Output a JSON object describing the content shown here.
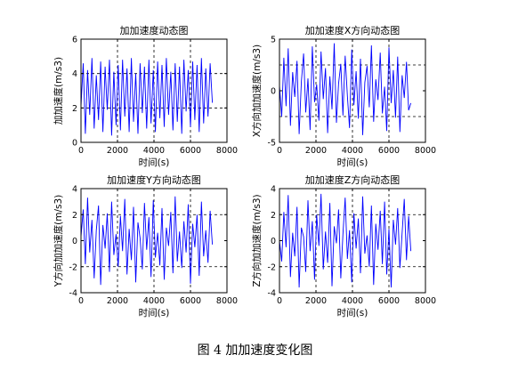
{
  "figure_caption": "图 4  加加速度变化图",
  "chart_data": [
    {
      "type": "line",
      "title": "加加速度动态图",
      "xlabel": "时间(s)",
      "ylabel": "加加速度(m/s3)",
      "xlim": [
        0,
        8000
      ],
      "ylim": [
        0,
        6
      ],
      "xticks": [
        0,
        2000,
        4000,
        6000,
        8000
      ],
      "yticks": [
        0,
        2,
        4,
        6
      ],
      "hlines": [
        2,
        4
      ],
      "vlines": [
        2000,
        4000,
        6000
      ],
      "color": "#0000ff",
      "x": [
        0,
        120,
        240,
        360,
        480,
        600,
        720,
        840,
        960,
        1080,
        1200,
        1320,
        1440,
        1560,
        1680,
        1800,
        1920,
        2040,
        2160,
        2280,
        2400,
        2520,
        2640,
        2760,
        2880,
        3000,
        3120,
        3240,
        3360,
        3480,
        3600,
        3720,
        3840,
        3960,
        4080,
        4200,
        4320,
        4440,
        4560,
        4680,
        4800,
        4920,
        5040,
        5160,
        5280,
        5400,
        5520,
        5640,
        5760,
        5880,
        6000,
        6120,
        6240,
        6360,
        6480,
        6600,
        6720,
        6840,
        6960,
        7080,
        7200
      ],
      "y": [
        2.1,
        4.6,
        0.5,
        4.2,
        1.6,
        4.9,
        0.8,
        3.9,
        1.3,
        4.7,
        0.6,
        4.4,
        1.9,
        4.8,
        0.4,
        4.1,
        1.0,
        4.5,
        0.7,
        4.8,
        1.5,
        4.3,
        0.6,
        4.9,
        1.2,
        4.0,
        0.5,
        4.6,
        1.7,
        4.4,
        0.8,
        4.8,
        1.1,
        4.2,
        0.6,
        4.7,
        1.4,
        4.5,
        0.9,
        4.9,
        1.6,
        4.1,
        0.7,
        4.6,
        1.2,
        4.4,
        0.5,
        4.8,
        1.8,
        4.2,
        0.9,
        4.7,
        1.3,
        4.5,
        0.6,
        4.9,
        1.1,
        4.3,
        1.5,
        4.6,
        2.3
      ]
    },
    {
      "type": "line",
      "title": "加加速度X方向动态图",
      "xlabel": "时间(s)",
      "ylabel": "X方向加加速度(m/s3)",
      "xlim": [
        0,
        8000
      ],
      "ylim": [
        -5,
        5
      ],
      "xticks": [
        0,
        2000,
        4000,
        6000,
        8000
      ],
      "yticks": [
        -5,
        0,
        5
      ],
      "hlines": [
        -2.5,
        2.5
      ],
      "vlines": [
        2000,
        4000,
        6000
      ],
      "color": "#0000ff",
      "x": [
        0,
        120,
        240,
        360,
        480,
        600,
        720,
        840,
        960,
        1080,
        1200,
        1320,
        1440,
        1560,
        1680,
        1800,
        1920,
        2040,
        2160,
        2280,
        2400,
        2520,
        2640,
        2760,
        2880,
        3000,
        3120,
        3240,
        3360,
        3480,
        3600,
        3720,
        3840,
        3960,
        4080,
        4200,
        4320,
        4440,
        4560,
        4680,
        4800,
        4920,
        5040,
        5160,
        5280,
        5400,
        5520,
        5640,
        5760,
        5880,
        6000,
        6120,
        6240,
        6360,
        6480,
        6600,
        6720,
        6840,
        6960,
        7080,
        7200
      ],
      "y": [
        0.5,
        -2.5,
        3.2,
        -1.5,
        4.1,
        -3.4,
        1.8,
        -0.6,
        2.9,
        -4.2,
        0.9,
        3.6,
        -2.1,
        1.2,
        -3.8,
        4.3,
        -1.1,
        0.6,
        -2.9,
        3.8,
        -0.8,
        2.2,
        -4.1,
        1.4,
        -1.8,
        4.6,
        -3.1,
        0.7,
        2.6,
        -2.4,
        3.4,
        -0.5,
        -3.6,
        4.0,
        -1.4,
        1.9,
        -2.7,
        3.1,
        -4.3,
        0.8,
        2.4,
        -1.6,
        4.4,
        -3.0,
        1.1,
        -0.9,
        3.7,
        -2.2,
        0.4,
        -3.9,
        4.2,
        -1.2,
        2.0,
        -2.6,
        3.3,
        -4.0,
        1.5,
        -0.7,
        2.8,
        -1.9,
        -1.2
      ]
    },
    {
      "type": "line",
      "title": "加加速度Y方向动态图",
      "xlabel": "时间(s)",
      "ylabel": "Y方向加加速度(m/s3)",
      "xlim": [
        0,
        8000
      ],
      "ylim": [
        -4,
        4
      ],
      "xticks": [
        0,
        2000,
        4000,
        6000,
        8000
      ],
      "yticks": [
        -4,
        -2,
        0,
        2,
        4
      ],
      "hlines": [
        -2,
        2
      ],
      "vlines": [
        2000,
        4000,
        6000
      ],
      "color": "#0000ff",
      "x": [
        0,
        120,
        240,
        360,
        480,
        600,
        720,
        840,
        960,
        1080,
        1200,
        1320,
        1440,
        1560,
        1680,
        1800,
        1920,
        2040,
        2160,
        2280,
        2400,
        2520,
        2640,
        2760,
        2880,
        3000,
        3120,
        3240,
        3360,
        3480,
        3600,
        3720,
        3840,
        3960,
        4080,
        4200,
        4320,
        4440,
        4560,
        4680,
        4800,
        4920,
        5040,
        5160,
        5280,
        5400,
        5520,
        5640,
        5760,
        5880,
        6000,
        6120,
        6240,
        6360,
        6480,
        6600,
        6720,
        6840,
        6960,
        7080,
        7200
      ],
      "y": [
        0.3,
        2.4,
        -1.8,
        3.3,
        -0.9,
        1.6,
        -2.9,
        0.8,
        2.7,
        -3.4,
        1.2,
        -0.6,
        2.1,
        -2.4,
        3.0,
        -1.1,
        0.5,
        -2.0,
        1.9,
        -0.8,
        3.2,
        -2.6,
        0.9,
        -1.5,
        2.6,
        -3.2,
        1.4,
        0.2,
        -2.2,
        2.9,
        -0.7,
        1.8,
        -2.8,
        3.1,
        -1.3,
        0.6,
        -1.9,
        2.5,
        -3.0,
        1.0,
        -0.4,
        2.2,
        -2.5,
        3.4,
        -1.6,
        0.7,
        -2.1,
        1.5,
        -0.9,
        2.8,
        -3.3,
        1.3,
        -0.5,
        2.0,
        -2.7,
        3.0,
        -1.2,
        0.8,
        -1.7,
        2.3,
        -0.3
      ]
    },
    {
      "type": "line",
      "title": "加加速度Z方向动态图",
      "xlabel": "时间(s)",
      "ylabel": "Z方向加加速度(m/s3)",
      "xlim": [
        0,
        8000
      ],
      "ylim": [
        -4,
        4
      ],
      "xticks": [
        0,
        2000,
        4000,
        6000,
        8000
      ],
      "yticks": [
        -4,
        -2,
        0,
        2,
        4
      ],
      "hlines": [
        -2,
        2
      ],
      "vlines": [
        2000,
        4000,
        6000
      ],
      "color": "#0000ff",
      "x": [
        0,
        120,
        240,
        360,
        480,
        600,
        720,
        840,
        960,
        1080,
        1200,
        1320,
        1440,
        1560,
        1680,
        1800,
        1920,
        2040,
        2160,
        2280,
        2400,
        2520,
        2640,
        2760,
        2880,
        3000,
        3120,
        3240,
        3360,
        3480,
        3600,
        3720,
        3840,
        3960,
        4080,
        4200,
        4320,
        4440,
        4560,
        4680,
        4800,
        4920,
        5040,
        5160,
        5280,
        5400,
        5520,
        5640,
        5760,
        5880,
        6000,
        6120,
        6240,
        6360,
        6480,
        6600,
        6720,
        6840,
        6960,
        7080,
        7200
      ],
      "y": [
        0.0,
        -1.6,
        2.2,
        -0.5,
        3.5,
        -2.8,
        0.6,
        -1.2,
        2.6,
        -3.6,
        1.0,
        0.3,
        -2.4,
        3.1,
        -0.8,
        1.5,
        -3.0,
        2.0,
        -0.4,
        3.6,
        -2.2,
        0.7,
        -1.7,
        2.9,
        -3.5,
        1.1,
        -0.2,
        2.4,
        -2.9,
        0.5,
        3.3,
        -1.4,
        0.8,
        -3.2,
        2.1,
        -0.6,
        1.7,
        -2.5,
        3.4,
        -1.0,
        0.4,
        -2.0,
        2.7,
        -3.4,
        1.3,
        -0.7,
        2.3,
        -1.8,
        3.0,
        -2.6,
        0.9,
        -3.6,
        1.6,
        -0.3,
        2.5,
        -2.1,
        0.6,
        3.2,
        -1.5,
        1.9,
        -0.8
      ]
    }
  ]
}
